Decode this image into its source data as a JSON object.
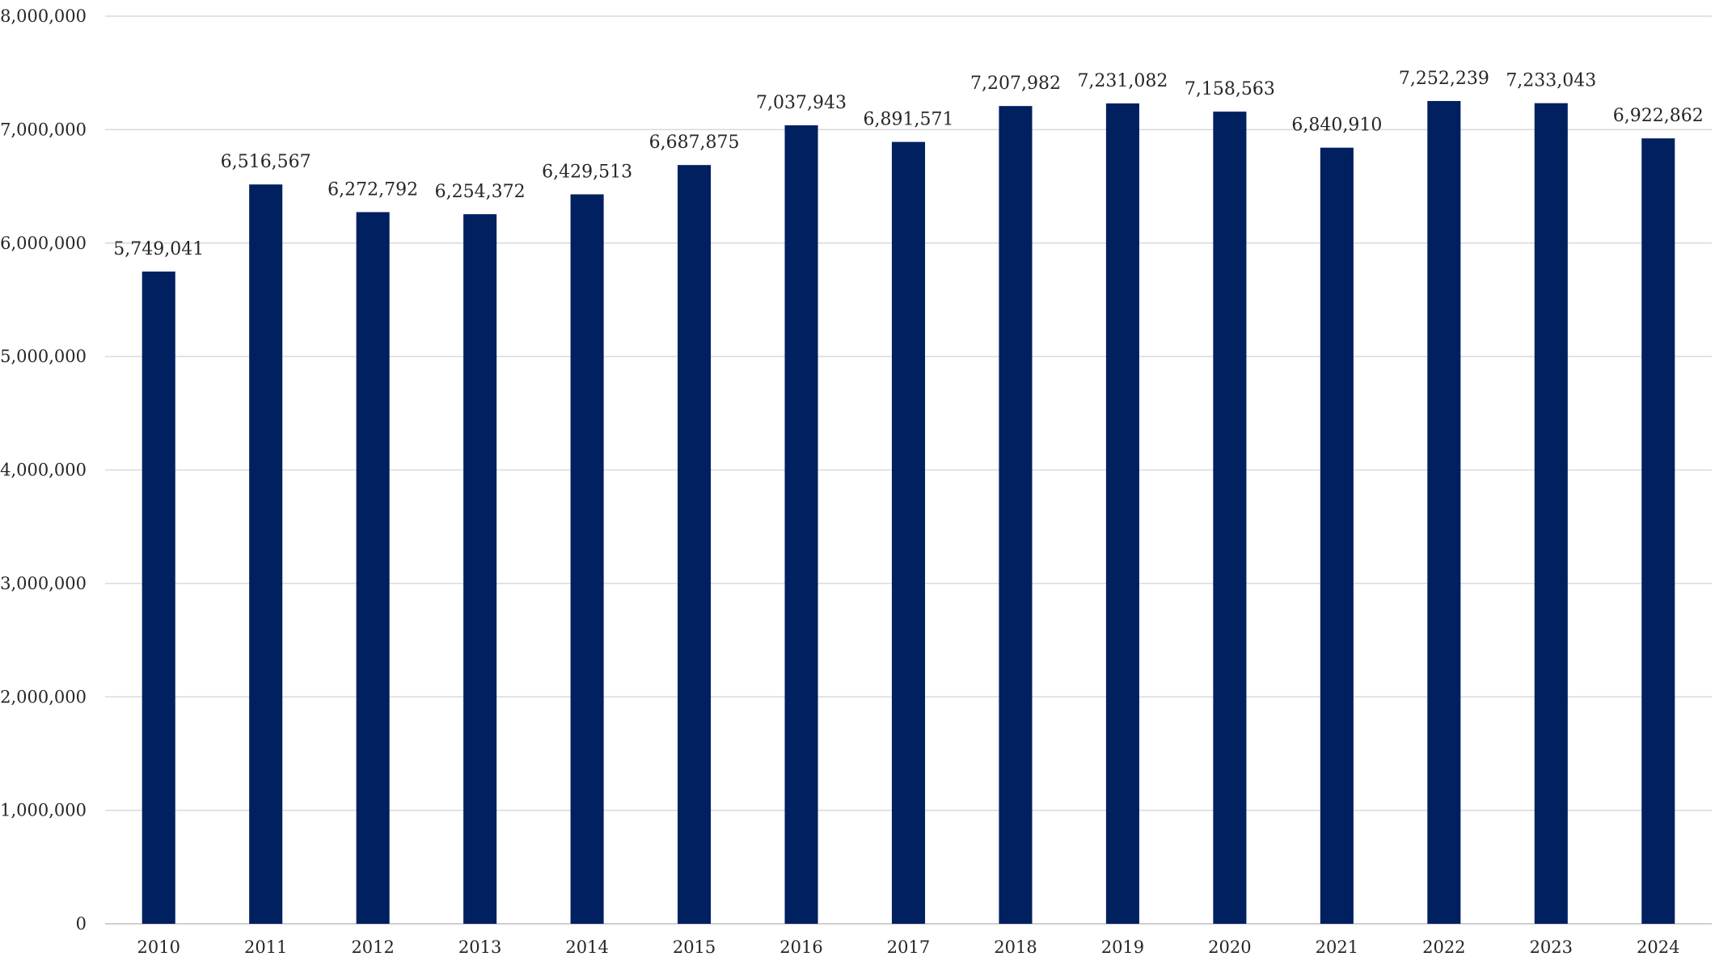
{
  "chart_data": {
    "type": "bar",
    "title": "",
    "xlabel": "",
    "ylabel": "",
    "categories": [
      "2010",
      "2011",
      "2012",
      "2013",
      "2014",
      "2015",
      "2016",
      "2017",
      "2018",
      "2019",
      "2020",
      "2021",
      "2022",
      "2023",
      "2024"
    ],
    "values": [
      5749041,
      6516567,
      6272792,
      6254372,
      6429513,
      6687875,
      7037943,
      6891571,
      7207982,
      7231082,
      7158563,
      6840910,
      7252239,
      7233043,
      6922862
    ],
    "data_labels": [
      "5,749,041",
      "6,516,567",
      "6,272,792",
      "6,254,372",
      "6,429,513",
      "6,687,875",
      "7,037,943",
      "6,891,571",
      "7,207,982",
      "7,231,082",
      "7,158,563",
      "6,840,910",
      "7,252,239",
      "7,233,043",
      "6,922,862"
    ],
    "ylim": [
      0,
      8000000
    ],
    "yticks": [
      0,
      1000000,
      2000000,
      3000000,
      4000000,
      5000000,
      6000000,
      7000000,
      8000000
    ],
    "ytick_labels": [
      "0",
      "1,000,000",
      "2,000,000",
      "3,000,000",
      "4,000,000",
      "5,000,000",
      "6,000,000",
      "7,000,000",
      "8,000,000"
    ],
    "grid": true,
    "legend": "none",
    "bar_color": "#002060",
    "grid_color": "#d9d9d9"
  }
}
